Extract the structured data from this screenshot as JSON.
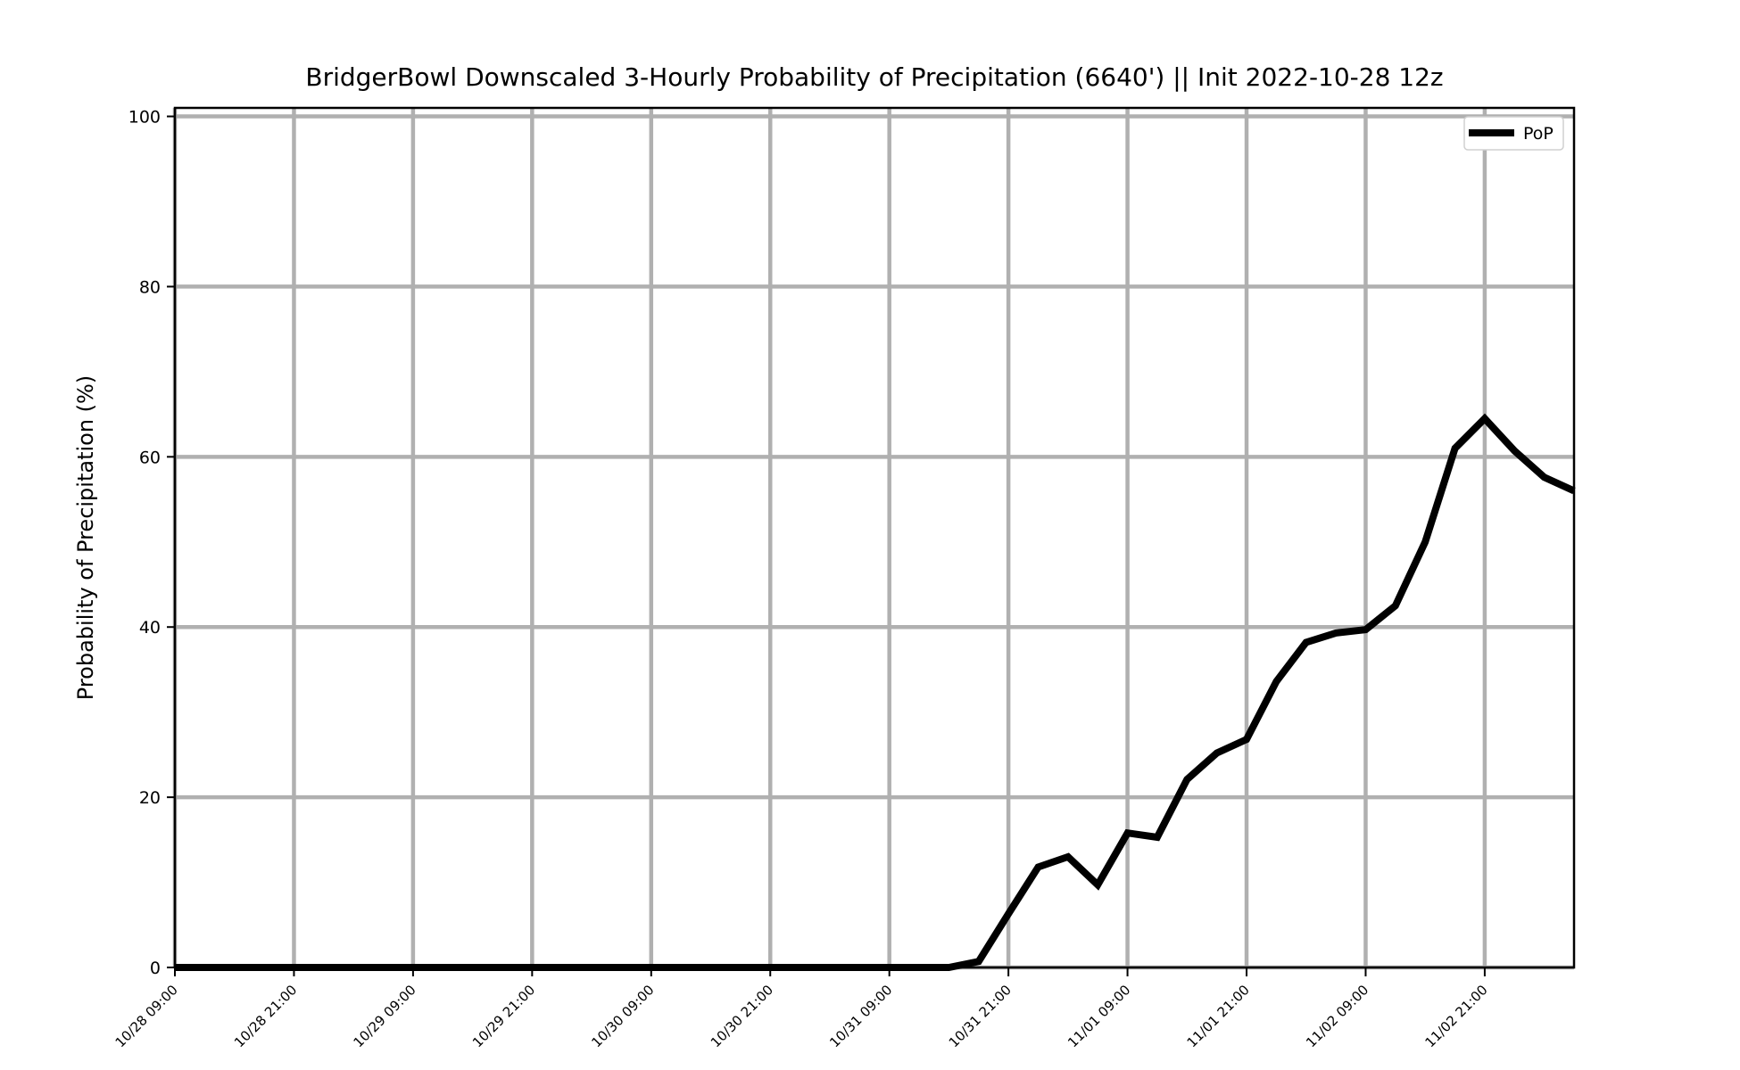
{
  "chart_data": {
    "type": "line",
    "title": "BridgerBowl Downscaled 3-Hourly Probability of Precipitation (6640') || Init 2022-10-28 12z",
    "xlabel": "",
    "ylabel": "Probability of Precipitation (%)",
    "ylim": [
      0,
      101
    ],
    "yticks": [
      0,
      20,
      40,
      60,
      80,
      100
    ],
    "xticks": [
      "10/28 09:00",
      "10/28 21:00",
      "10/29 09:00",
      "10/29 21:00",
      "10/30 09:00",
      "10/30 21:00",
      "10/31 09:00",
      "10/31 21:00",
      "11/01 09:00",
      "11/01 21:00",
      "11/02 09:00",
      "11/02 21:00"
    ],
    "grid": true,
    "legend_position": "top-right",
    "x": [
      "10/28 09:00",
      "10/28 12:00",
      "10/28 15:00",
      "10/28 18:00",
      "10/28 21:00",
      "10/29 00:00",
      "10/29 03:00",
      "10/29 06:00",
      "10/29 09:00",
      "10/29 12:00",
      "10/29 15:00",
      "10/29 18:00",
      "10/29 21:00",
      "10/30 00:00",
      "10/30 03:00",
      "10/30 06:00",
      "10/30 09:00",
      "10/30 12:00",
      "10/30 15:00",
      "10/30 18:00",
      "10/30 21:00",
      "10/31 00:00",
      "10/31 03:00",
      "10/31 06:00",
      "10/31 09:00",
      "10/31 12:00",
      "10/31 15:00",
      "10/31 18:00",
      "10/31 21:00",
      "11/01 00:00",
      "11/01 03:00",
      "11/01 06:00",
      "11/01 09:00",
      "11/01 12:00",
      "11/01 15:00",
      "11/01 18:00",
      "11/01 21:00",
      "11/02 00:00",
      "11/02 03:00",
      "11/02 06:00",
      "11/02 09:00",
      "11/02 12:00",
      "11/02 15:00",
      "11/02 18:00",
      "11/02 21:00",
      "11/03 00:00",
      "11/03 03:00",
      "11/03 06:00"
    ],
    "series": [
      {
        "name": "PoP",
        "color": "#000000",
        "values": [
          0,
          0,
          0,
          0,
          0,
          0,
          0,
          0,
          0,
          0,
          0,
          0,
          0,
          0,
          0,
          0,
          0,
          0,
          0,
          0,
          0,
          0,
          0,
          0,
          0,
          0,
          0,
          0.7,
          6.3,
          11.8,
          13.0,
          9.7,
          15.8,
          15.3,
          22.1,
          25.2,
          26.8,
          33.6,
          38.2,
          39.3,
          39.7,
          42.5,
          50.0,
          61.0,
          64.5,
          60.7,
          57.6,
          56.0
        ]
      }
    ],
    "grid_color": "#b0b0b0"
  }
}
